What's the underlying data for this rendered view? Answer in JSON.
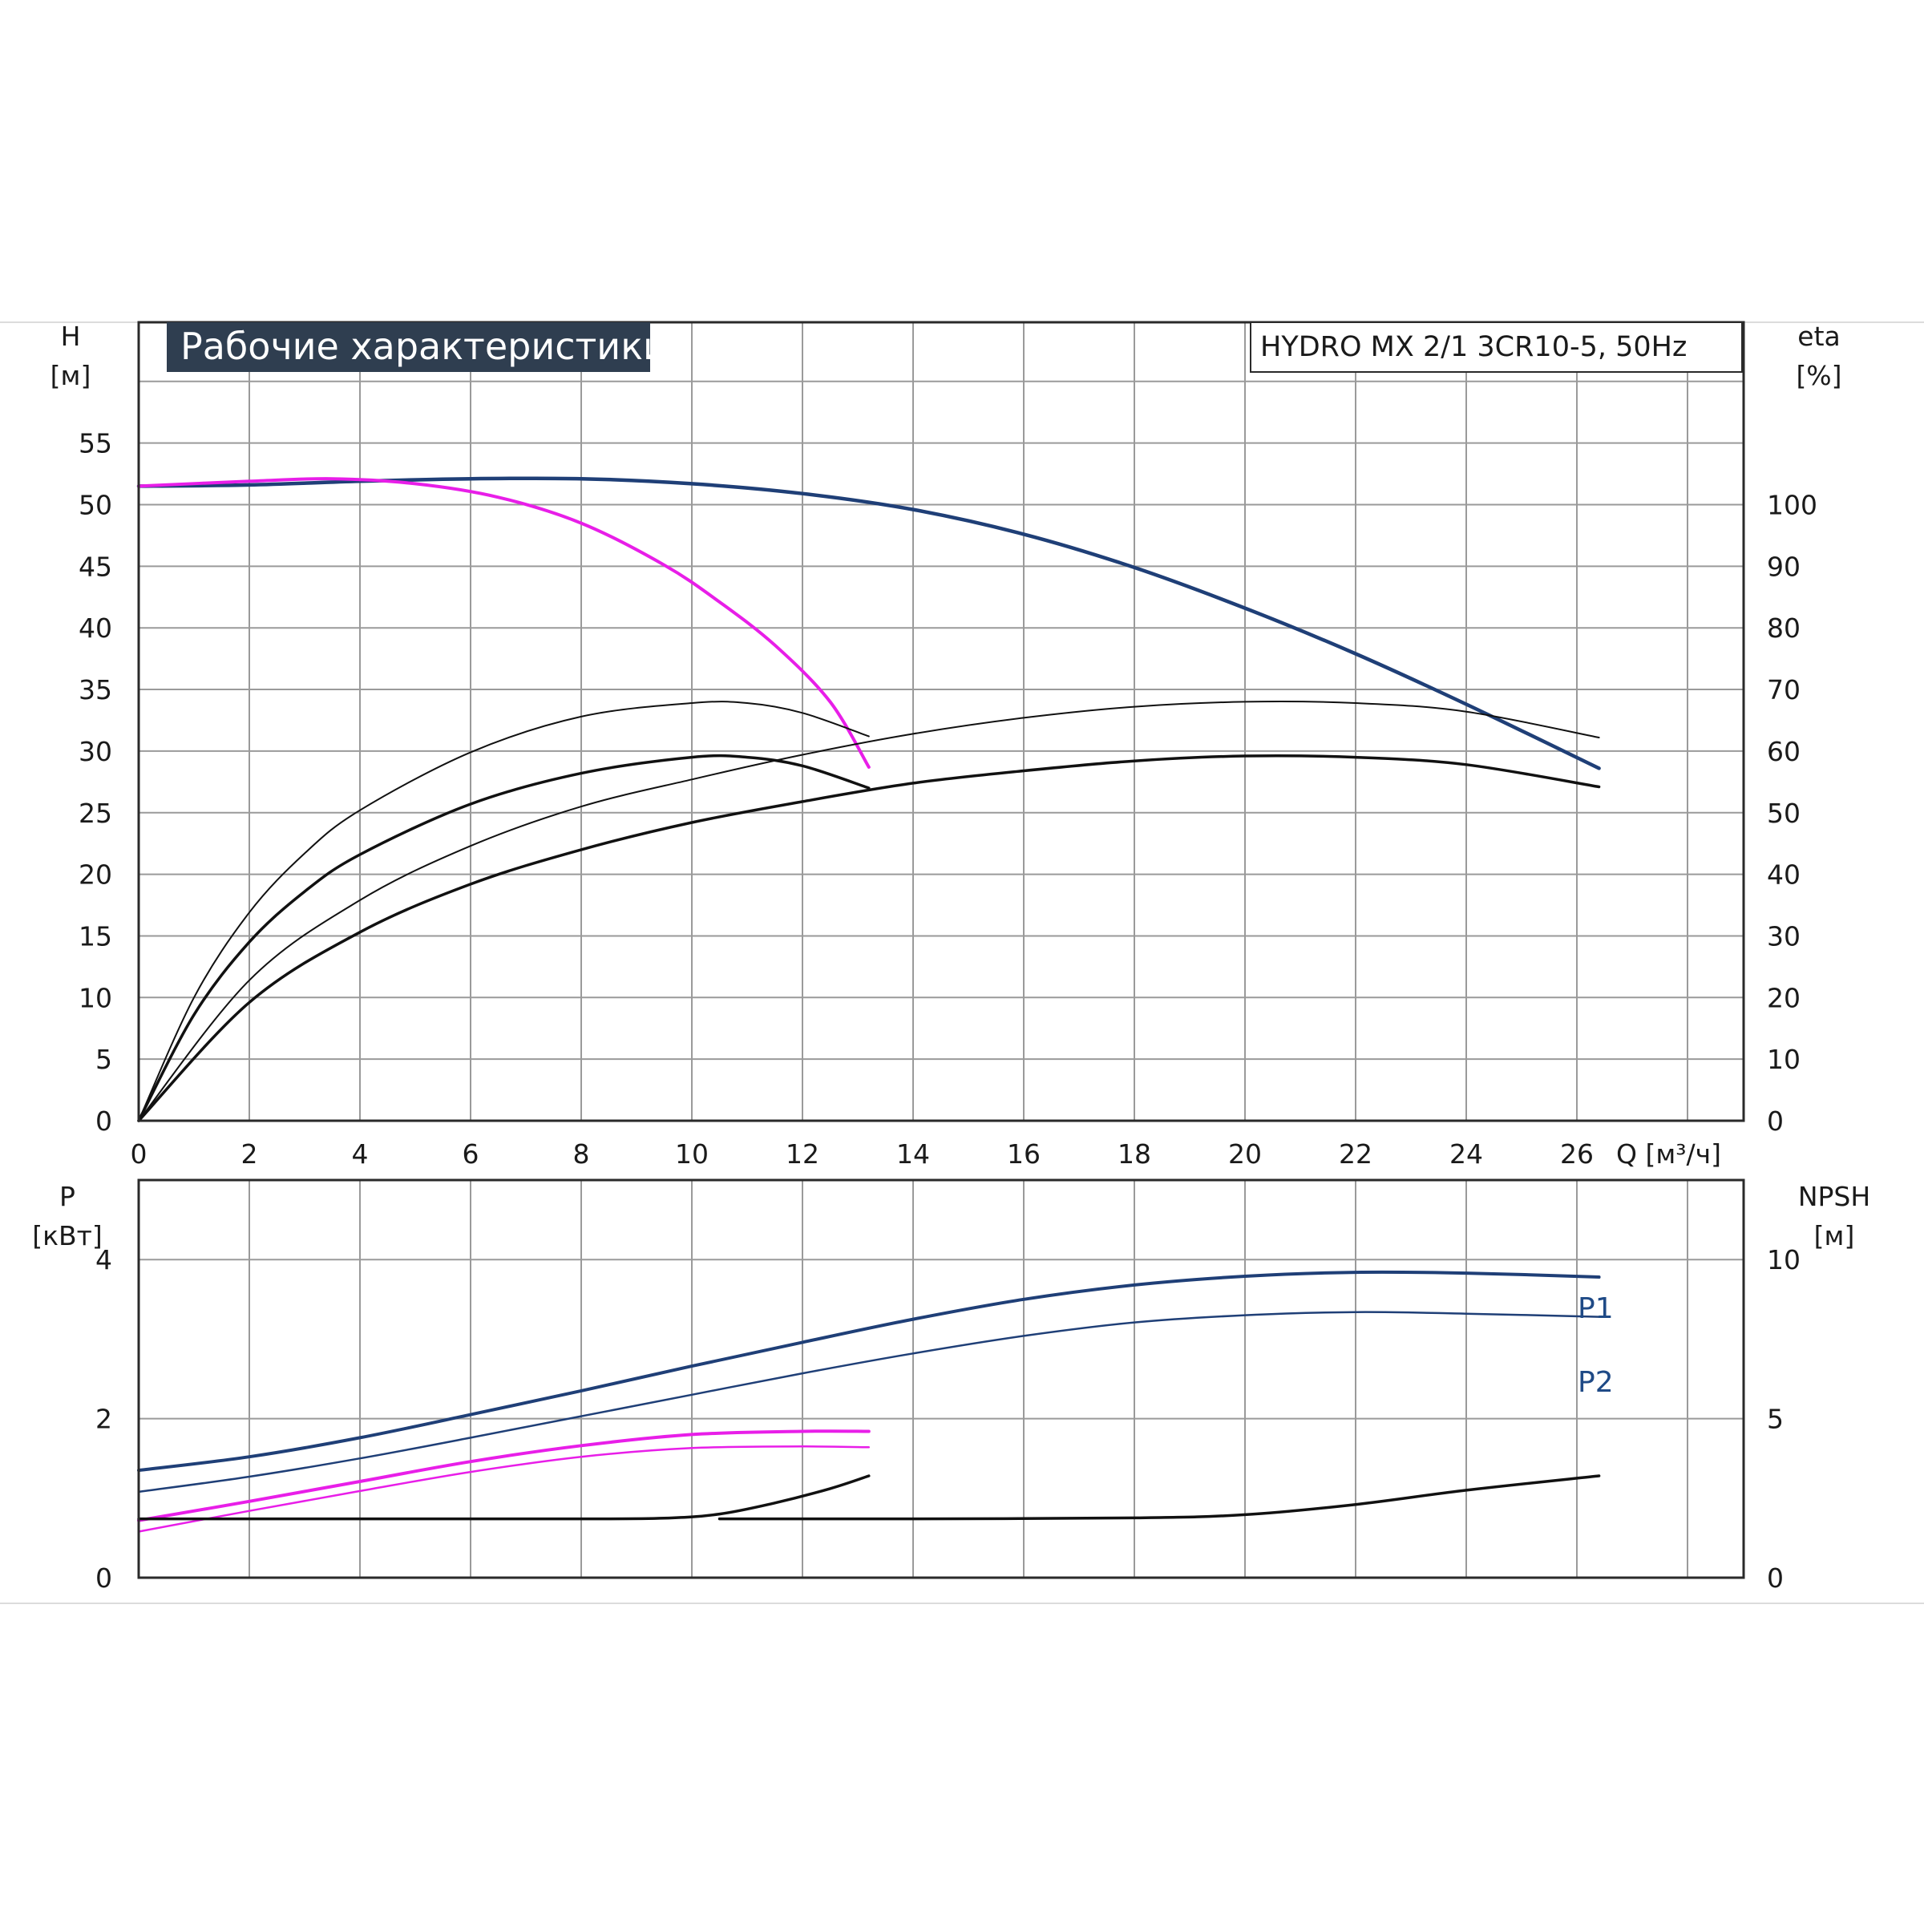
{
  "title": "Рабочие характеристики",
  "model": "HYDRO MX 2/1 3CR10-5, 50Hz",
  "colors": {
    "navy": "#1f3f77",
    "magenta": "#e81ee8",
    "black": "#111111",
    "grid": "#9a9a9a",
    "title_bg": "#2f3e50"
  },
  "chart_data": [
    {
      "type": "line",
      "xlabel": "Q [м³/ч]",
      "ylabel": [
        "H",
        "[м]"
      ],
      "y2label": [
        "eta",
        "[%]"
      ],
      "xlim": [
        0,
        29
      ],
      "ylim": [
        0,
        60
      ],
      "y2lim": [
        0,
        120
      ],
      "x_ticks": [
        "0",
        "2",
        "4",
        "6",
        "8",
        "10",
        "12",
        "14",
        "16",
        "18",
        "20",
        "22",
        "24",
        "26"
      ],
      "y_ticks": [
        "0",
        "5",
        "10",
        "15",
        "20",
        "25",
        "30",
        "35",
        "40",
        "45",
        "50",
        "55"
      ],
      "y2_ticks": [
        "0",
        "10",
        "20",
        "30",
        "40",
        "50",
        "60",
        "70",
        "80",
        "90",
        "100"
      ],
      "series": [
        {
          "color": "navy",
          "axis": "left",
          "width": 4.5,
          "points": [
            [
              0,
              51.5
            ],
            [
              2,
              51.6
            ],
            [
              4,
              51.9
            ],
            [
              6,
              52.1
            ],
            [
              8,
              52.1
            ],
            [
              10,
              51.7
            ],
            [
              12,
              50.9
            ],
            [
              14,
              49.6
            ],
            [
              16,
              47.6
            ],
            [
              18,
              44.9
            ],
            [
              20,
              41.6
            ],
            [
              22,
              37.9
            ],
            [
              24,
              33.8
            ],
            [
              26.4,
              28.6
            ]
          ]
        },
        {
          "color": "magenta",
          "axis": "left",
          "width": 4,
          "points": [
            [
              0,
              51.5
            ],
            [
              2,
              51.9
            ],
            [
              3.5,
              52.1
            ],
            [
              5,
              51.7
            ],
            [
              6.5,
              50.6
            ],
            [
              8,
              48.5
            ],
            [
              9.5,
              45.1
            ],
            [
              10.5,
              42.1
            ],
            [
              11.5,
              38.6
            ],
            [
              12.5,
              34.0
            ],
            [
              13.2,
              28.7
            ]
          ]
        },
        {
          "color": "black",
          "axis": "left",
          "width": 2,
          "points": [
            [
              0,
              0
            ],
            [
              1,
              10
            ],
            [
              2,
              16.9
            ],
            [
              3,
              21.7
            ],
            [
              4,
              25.2
            ],
            [
              6,
              29.9
            ],
            [
              8,
              32.8
            ],
            [
              10,
              33.9
            ],
            [
              11,
              33.9
            ],
            [
              12,
              33.1
            ],
            [
              13.2,
              31.2
            ]
          ]
        },
        {
          "color": "black",
          "axis": "left",
          "width": 3.5,
          "points": [
            [
              0,
              0
            ],
            [
              1,
              8.6
            ],
            [
              2,
              14.5
            ],
            [
              3,
              18.6
            ],
            [
              4,
              21.6
            ],
            [
              6,
              25.7
            ],
            [
              8,
              28.2
            ],
            [
              10,
              29.5
            ],
            [
              11,
              29.5
            ],
            [
              12,
              28.8
            ],
            [
              13.2,
              27.0
            ]
          ]
        },
        {
          "color": "black",
          "axis": "left",
          "width": 2,
          "points": [
            [
              0,
              0
            ],
            [
              2,
              11.4
            ],
            [
              4,
              17.9
            ],
            [
              6,
              22.3
            ],
            [
              8,
              25.5
            ],
            [
              10,
              27.7
            ],
            [
              12,
              29.7
            ],
            [
              14,
              31.4
            ],
            [
              16,
              32.7
            ],
            [
              18,
              33.6
            ],
            [
              20,
              34.0
            ],
            [
              22,
              33.9
            ],
            [
              24,
              33.2
            ],
            [
              26.4,
              31.1
            ]
          ]
        },
        {
          "color": "black",
          "axis": "left",
          "width": 3.5,
          "points": [
            [
              0,
              0
            ],
            [
              2,
              9.6
            ],
            [
              4,
              15.3
            ],
            [
              6,
              19.2
            ],
            [
              8,
              22.0
            ],
            [
              10,
              24.2
            ],
            [
              12,
              25.9
            ],
            [
              14,
              27.4
            ],
            [
              16,
              28.4
            ],
            [
              18,
              29.2
            ],
            [
              20,
              29.6
            ],
            [
              22,
              29.5
            ],
            [
              24,
              28.9
            ],
            [
              26.4,
              27.1
            ]
          ]
        }
      ]
    },
    {
      "type": "line",
      "xlim": [
        0,
        29
      ],
      "ylim": [
        0,
        5
      ],
      "y2lim": [
        0,
        12.5
      ],
      "ylabel": [
        "P",
        "[кВт]"
      ],
      "y2label": [
        "NPSH",
        "[м]"
      ],
      "y_ticks": [
        "0",
        "2",
        "4"
      ],
      "y2_ticks": [
        "0",
        "5",
        "10"
      ],
      "series": [
        {
          "name": "P1",
          "color": "navy",
          "axis": "left",
          "width": 4,
          "points": [
            [
              0,
              1.35
            ],
            [
              2,
              1.52
            ],
            [
              4,
              1.76
            ],
            [
              6,
              2.05
            ],
            [
              8,
              2.35
            ],
            [
              10,
              2.66
            ],
            [
              12,
              2.96
            ],
            [
              14,
              3.25
            ],
            [
              16,
              3.5
            ],
            [
              18,
              3.68
            ],
            [
              20,
              3.79
            ],
            [
              22,
              3.84
            ],
            [
              24,
              3.83
            ],
            [
              26.4,
              3.78
            ]
          ]
        },
        {
          "name": "P2",
          "color": "navy",
          "axis": "left",
          "width": 2.5,
          "points": [
            [
              0,
              1.08
            ],
            [
              2,
              1.27
            ],
            [
              4,
              1.5
            ],
            [
              6,
              1.76
            ],
            [
              8,
              2.03
            ],
            [
              10,
              2.3
            ],
            [
              12,
              2.57
            ],
            [
              14,
              2.82
            ],
            [
              16,
              3.04
            ],
            [
              18,
              3.21
            ],
            [
              20,
              3.3
            ],
            [
              22,
              3.34
            ],
            [
              24,
              3.32
            ],
            [
              26.4,
              3.28
            ]
          ]
        },
        {
          "color": "magenta",
          "axis": "left",
          "width": 4,
          "points": [
            [
              0,
              0.72
            ],
            [
              2,
              0.96
            ],
            [
              4,
              1.21
            ],
            [
              6,
              1.46
            ],
            [
              8,
              1.66
            ],
            [
              10,
              1.8
            ],
            [
              12,
              1.84
            ],
            [
              13.2,
              1.84
            ]
          ]
        },
        {
          "color": "magenta",
          "axis": "left",
          "width": 2.5,
          "points": [
            [
              0,
              0.58
            ],
            [
              2,
              0.84
            ],
            [
              4,
              1.09
            ],
            [
              6,
              1.33
            ],
            [
              8,
              1.52
            ],
            [
              10,
              1.63
            ],
            [
              12,
              1.65
            ],
            [
              13.2,
              1.64
            ]
          ]
        },
        {
          "color": "black",
          "axis": "right",
          "width": 3.5,
          "points": [
            [
              0,
              1.85
            ],
            [
              4,
              1.85
            ],
            [
              8,
              1.85
            ],
            [
              9.5,
              1.87
            ],
            [
              10.5,
              2.0
            ],
            [
              11.5,
              2.35
            ],
            [
              12.5,
              2.8
            ],
            [
              13.2,
              3.2
            ]
          ]
        },
        {
          "color": "black",
          "axis": "right",
          "width": 3.5,
          "points": [
            [
              10.5,
              1.85
            ],
            [
              14,
              1.85
            ],
            [
              18,
              1.88
            ],
            [
              20,
              1.98
            ],
            [
              22,
              2.3
            ],
            [
              24,
              2.75
            ],
            [
              26.4,
              3.2
            ]
          ]
        }
      ]
    }
  ]
}
